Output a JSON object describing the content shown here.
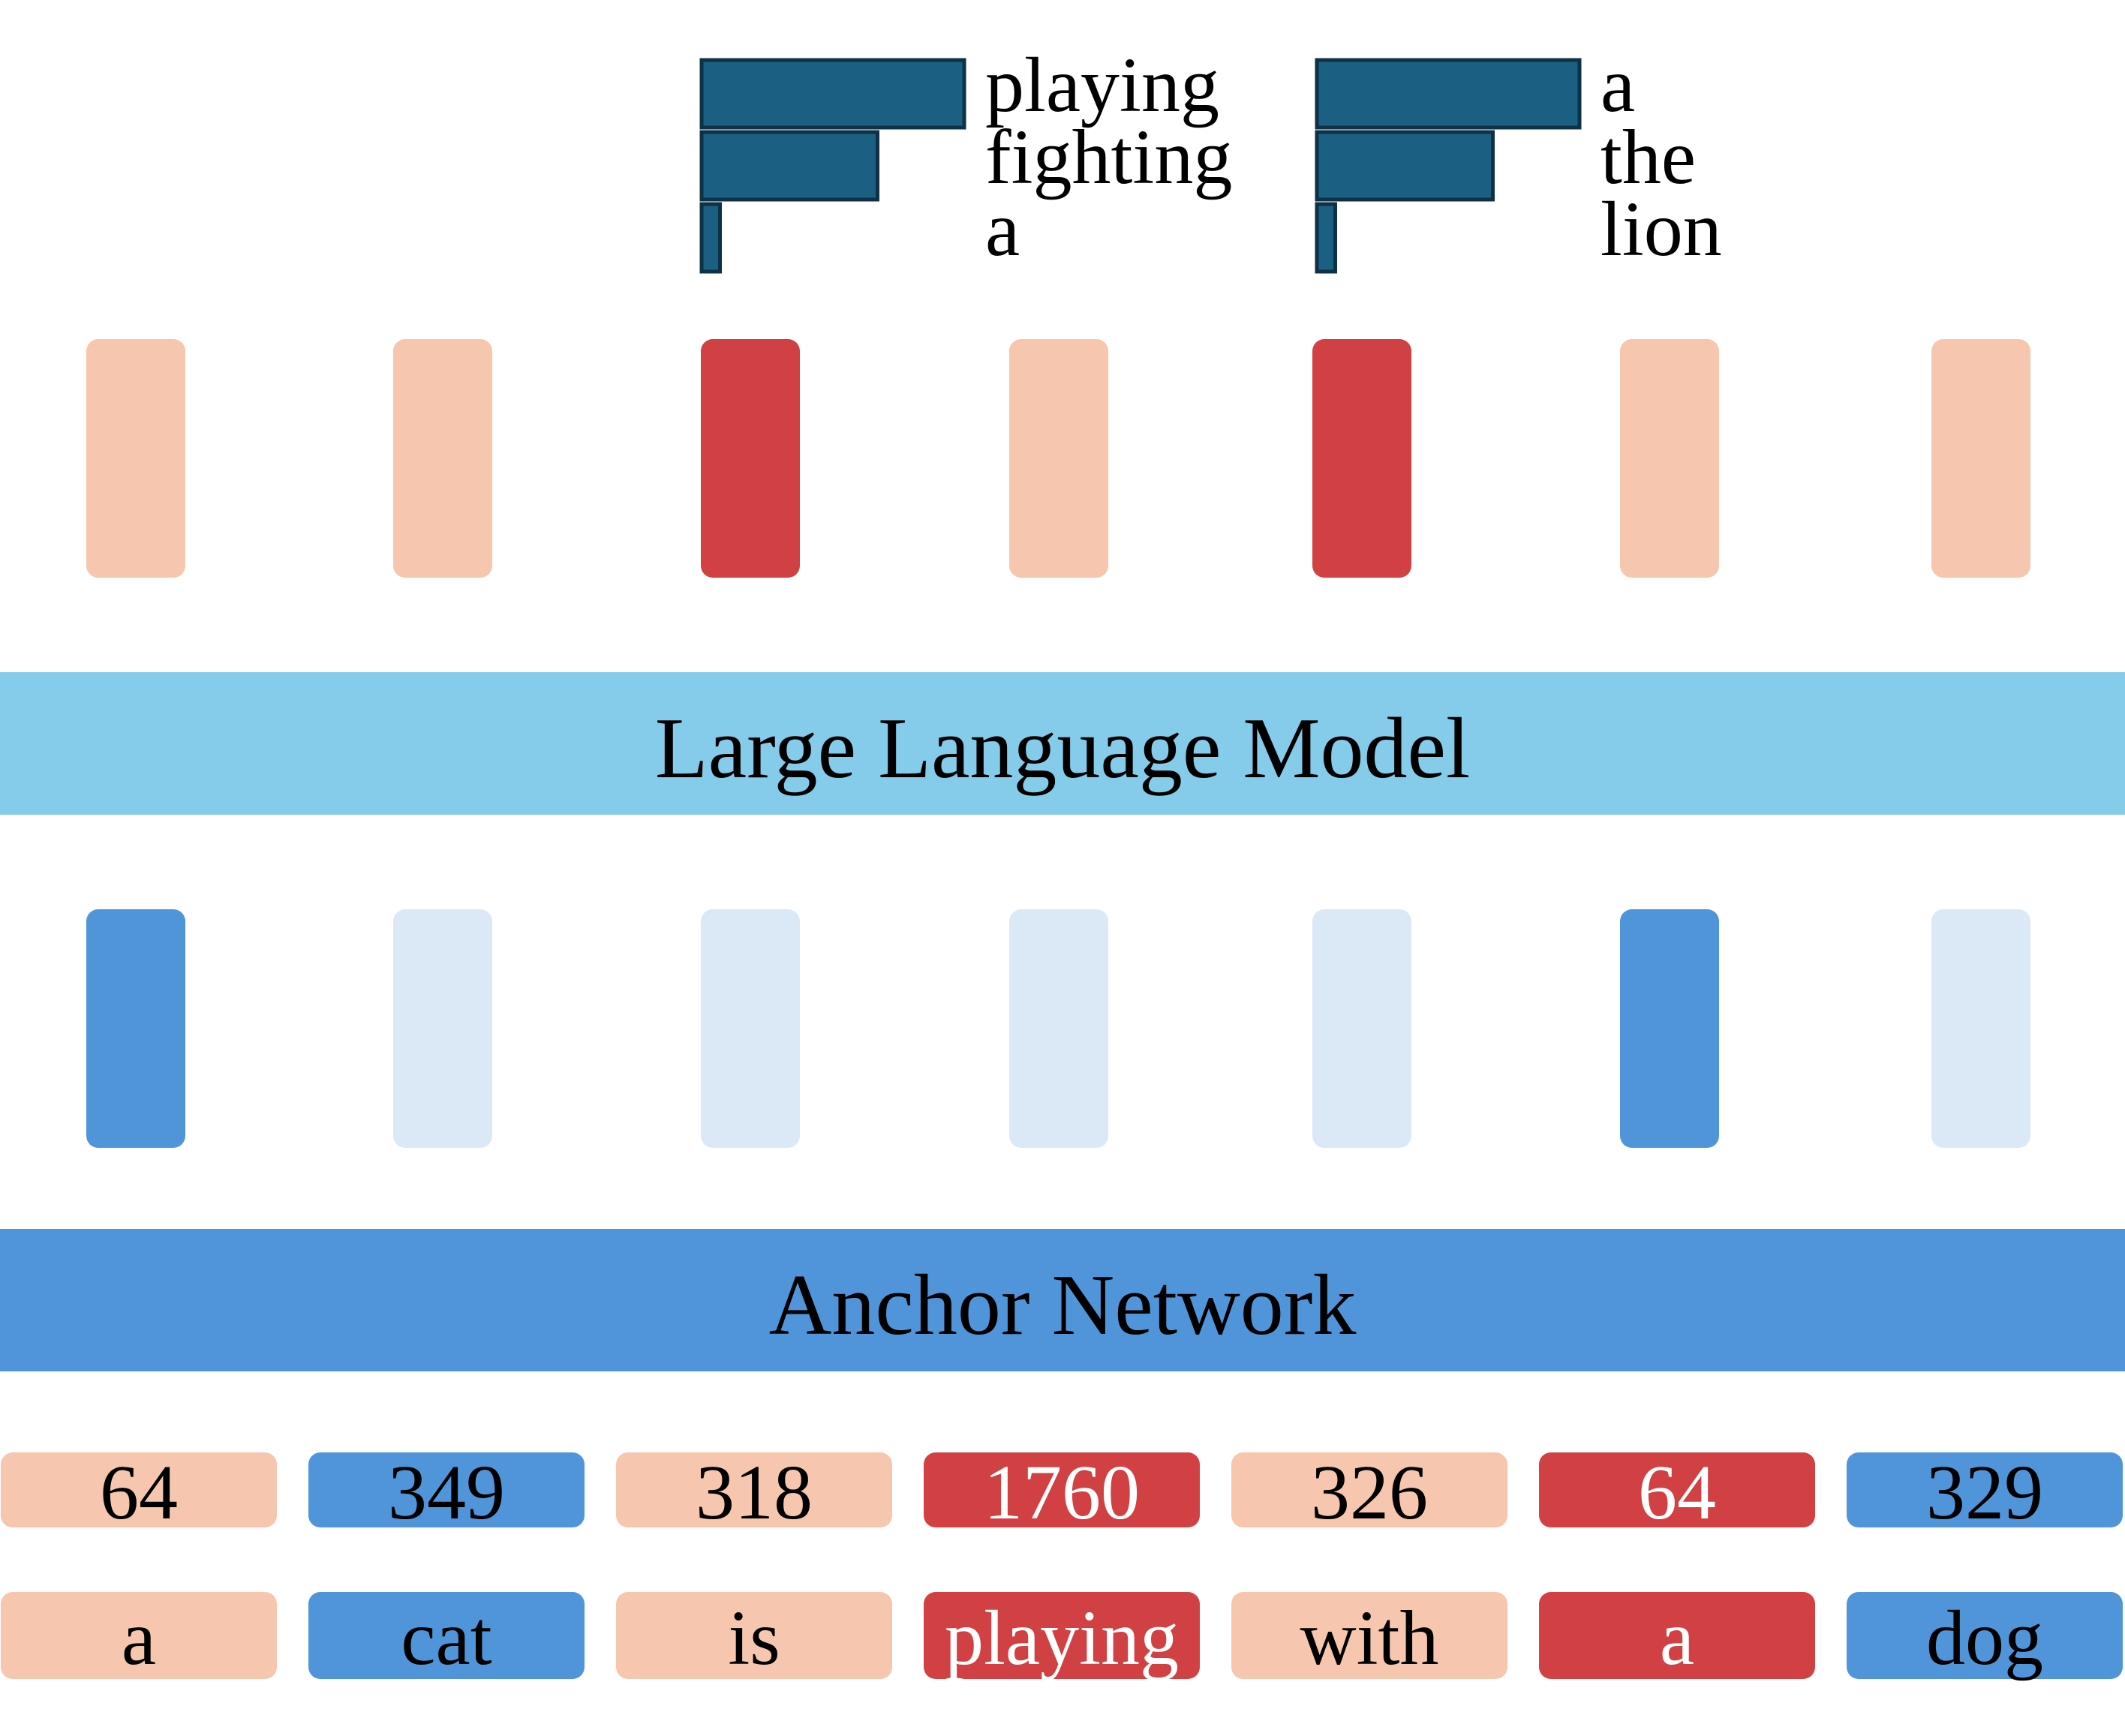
{
  "colors": {
    "peach": "#F6C6AE",
    "red": "#D14143",
    "blue": "#5095DA",
    "lightblue": "#DBE9F7",
    "llm_band": "#85CBEA",
    "anchor_band": "#5095DA",
    "bar_fill": "#1B6083",
    "bar_stroke": "#0E3146",
    "text_dark": "#000000",
    "text_light": "#ffffff"
  },
  "bands": {
    "llm_label": "Large Language Model",
    "anchor_label": "Anchor Network"
  },
  "upper_column_colors": [
    "peach",
    "peach",
    "red",
    "peach",
    "red",
    "peach",
    "peach"
  ],
  "lower_column_colors": [
    "blue",
    "lightblue",
    "lightblue",
    "lightblue",
    "lightblue",
    "blue",
    "lightblue"
  ],
  "token_ids": [
    {
      "value": "64",
      "color": "peach"
    },
    {
      "value": "349",
      "color": "blue"
    },
    {
      "value": "318",
      "color": "peach"
    },
    {
      "value": "1760",
      "color": "red"
    },
    {
      "value": "326",
      "color": "peach"
    },
    {
      "value": "64",
      "color": "red"
    },
    {
      "value": "329",
      "color": "blue"
    }
  ],
  "tokens": [
    {
      "word": "a",
      "color": "peach"
    },
    {
      "word": "cat",
      "color": "blue"
    },
    {
      "word": "is",
      "color": "peach"
    },
    {
      "word": "playing",
      "color": "red"
    },
    {
      "word": "with",
      "color": "peach"
    },
    {
      "word": "a",
      "color": "red"
    },
    {
      "word": "dog",
      "color": "blue"
    }
  ],
  "predictions": [
    {
      "column": 2,
      "candidates": [
        {
          "word": "playing",
          "prob": 1.0
        },
        {
          "word": "fighting",
          "prob": 0.67
        },
        {
          "word": "a",
          "prob": 0.07
        }
      ]
    },
    {
      "column": 4,
      "candidates": [
        {
          "word": "a",
          "prob": 1.0
        },
        {
          "word": "the",
          "prob": 0.67
        },
        {
          "word": "lion",
          "prob": 0.07
        }
      ]
    }
  ]
}
